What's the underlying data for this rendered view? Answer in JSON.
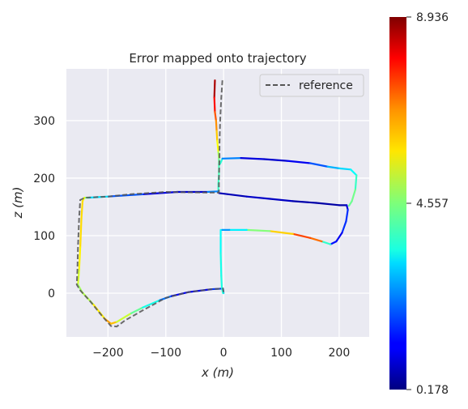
{
  "chart_data": {
    "type": "line",
    "title": "Error mapped onto trajectory",
    "xlabel": "x (m)",
    "ylabel": "z (m)",
    "xlim": [
      -272,
      252
    ],
    "ylim": [
      -76,
      390
    ],
    "x_ticks": [
      -200,
      -100,
      0,
      100,
      200
    ],
    "y_ticks": [
      0,
      100,
      200,
      300
    ],
    "x_tick_labels": [
      "−200",
      "−100",
      "0",
      "100",
      "200"
    ],
    "y_tick_labels": [
      "0",
      "100",
      "200",
      "300"
    ],
    "grid": true,
    "legend": {
      "position": "top-right",
      "entries": [
        "reference"
      ]
    },
    "colorbar": {
      "cmap": "jet",
      "min": 0.178,
      "max": 8.936,
      "tick_values": [
        0.178,
        4.557,
        8.936
      ],
      "tick_labels": [
        "0.178",
        "4.557",
        "8.936"
      ]
    },
    "series": [
      {
        "name": "reference",
        "style": "dashed",
        "color": "#555555",
        "points": [
          [
            -2,
            370
          ],
          [
            -4,
            340
          ],
          [
            -6,
            300
          ],
          [
            -7,
            260
          ],
          [
            -7,
            235
          ],
          [
            -8,
            200
          ],
          [
            -8,
            175
          ],
          [
            -30,
            175
          ],
          [
            -100,
            176
          ],
          [
            -160,
            172
          ],
          [
            -200,
            168
          ],
          [
            -240,
            166
          ],
          [
            -248,
            162
          ],
          [
            -250,
            130
          ],
          [
            -252,
            80
          ],
          [
            -253,
            40
          ],
          [
            -254,
            15
          ],
          [
            -248,
            5
          ],
          [
            -230,
            -15
          ],
          [
            -210,
            -40
          ],
          [
            -195,
            -57
          ],
          [
            -185,
            -58
          ],
          [
            -170,
            -47
          ],
          [
            -140,
            -30
          ],
          [
            -100,
            -8
          ],
          [
            -60,
            2
          ],
          [
            -20,
            7
          ],
          [
            -1,
            8
          ],
          [
            0,
            2
          ]
        ]
      },
      {
        "name": "",
        "style": "colored",
        "points": [
          [
            -15,
            370,
            8.9
          ],
          [
            -16,
            340,
            8.2
          ],
          [
            -15,
            315,
            7.3
          ],
          [
            -13,
            300,
            6.9
          ],
          [
            -12,
            282,
            6.3
          ],
          [
            -11,
            265,
            5.9
          ],
          [
            -9,
            245,
            5.3
          ],
          [
            -8,
            233,
            4.5
          ],
          [
            -8,
            225,
            4.2
          ],
          [
            -8,
            205,
            4.0
          ],
          [
            -9,
            190,
            4.0
          ],
          [
            -9,
            177,
            3.9
          ],
          [
            -30,
            176,
            0.9
          ],
          [
            -80,
            176,
            0.8
          ],
          [
            -140,
            172,
            1.2
          ],
          [
            -200,
            168,
            2.8
          ],
          [
            -235,
            166,
            3.6
          ],
          [
            -241,
            166,
            5.3
          ],
          [
            -244,
            160,
            5.9
          ],
          [
            -246,
            130,
            6.0
          ],
          [
            -248,
            80,
            5.9
          ],
          [
            -250,
            40,
            5.6
          ],
          [
            -252,
            15,
            5.0
          ],
          [
            -245,
            2,
            4.7
          ],
          [
            -225,
            -20,
            5.3
          ],
          [
            -205,
            -45,
            6.3
          ],
          [
            -195,
            -53,
            6.6
          ],
          [
            -185,
            -50,
            5.8
          ],
          [
            -160,
            -35,
            4.6
          ],
          [
            -140,
            -25,
            4.1
          ],
          [
            -110,
            -12,
            3.2
          ],
          [
            -90,
            -5,
            1.3
          ],
          [
            -60,
            2,
            1.0
          ],
          [
            -20,
            7,
            1.2
          ],
          [
            -1,
            8,
            2.2
          ],
          [
            0,
            0,
            3.4
          ]
        ]
      },
      {
        "name": "",
        "style": "colored",
        "points": [
          [
            -8,
            174,
            0.6
          ],
          [
            40,
            168,
            0.7
          ],
          [
            80,
            164,
            0.9
          ],
          [
            120,
            160,
            0.6
          ],
          [
            160,
            157,
            0.5
          ],
          [
            200,
            153,
            0.5
          ],
          [
            213,
            153,
            0.6
          ],
          [
            215,
            145,
            1.3
          ],
          [
            212,
            125,
            2.0
          ],
          [
            205,
            105,
            1.3
          ],
          [
            195,
            90,
            1.0
          ],
          [
            185,
            85,
            1.8
          ],
          [
            170,
            90,
            6.0
          ],
          [
            150,
            96,
            7.8
          ],
          [
            120,
            103,
            6.7
          ],
          [
            80,
            108,
            5.4
          ],
          [
            40,
            110,
            3.8
          ],
          [
            10,
            110,
            2.9
          ],
          [
            -3,
            110,
            2.3
          ]
        ]
      },
      {
        "name": "",
        "style": "colored",
        "points": [
          [
            -5,
            110,
            3.4
          ],
          [
            -5,
            70,
            3.6
          ],
          [
            -4,
            30,
            3.7
          ],
          [
            -3,
            10,
            3.7
          ],
          [
            -1,
            0,
            3.8
          ]
        ]
      },
      {
        "name": "",
        "style": "colored",
        "points": [
          [
            -6,
            225,
            4.0
          ],
          [
            -2,
            234,
            3.6
          ],
          [
            30,
            235,
            1.2
          ],
          [
            70,
            233,
            0.8
          ],
          [
            110,
            230,
            0.9
          ],
          [
            150,
            226,
            1.4
          ],
          [
            180,
            220,
            2.6
          ],
          [
            200,
            217,
            3.0
          ],
          [
            220,
            215,
            3.3
          ],
          [
            230,
            205,
            3.6
          ],
          [
            228,
            180,
            4.3
          ],
          [
            222,
            160,
            4.6
          ],
          [
            217,
            152,
            4.2
          ]
        ]
      }
    ]
  }
}
